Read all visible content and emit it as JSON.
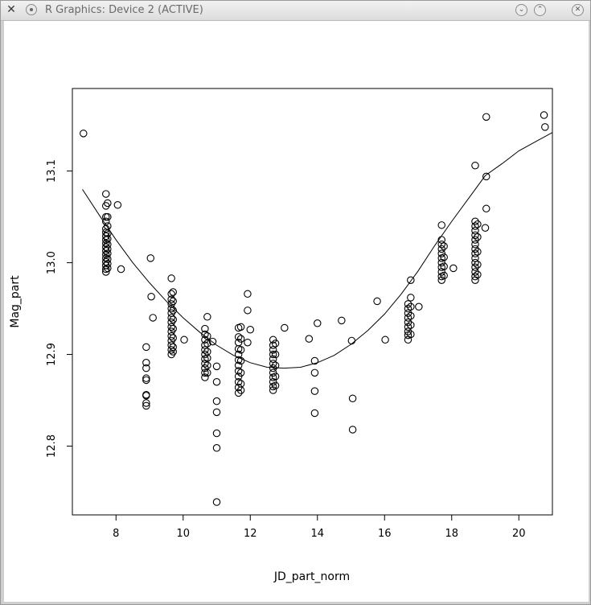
{
  "window": {
    "title": "R Graphics: Device 2 (ACTIVE)"
  },
  "chart_data": {
    "type": "scatter",
    "title": "",
    "xlabel": "JD_part_norm",
    "ylabel": "Mag_part",
    "xlim": [
      6.7,
      21.0
    ],
    "ylim": [
      12.725,
      13.19
    ],
    "xticks": [
      8,
      10,
      12,
      14,
      16,
      18,
      20
    ],
    "yticks": [
      12.8,
      12.9,
      13.0,
      13.1
    ],
    "xtick_labels": [
      "8",
      "10",
      "12",
      "14",
      "16",
      "18",
      "20"
    ],
    "ytick_labels": [
      "12.8",
      "12.9",
      "13.0",
      "13.1"
    ],
    "grid": false,
    "legend": "none",
    "point_color": "#000000",
    "points": [
      [
        7.03,
        13.141
      ],
      [
        7.7,
        13.075
      ],
      [
        7.7,
        13.062
      ],
      [
        7.7,
        13.05
      ],
      [
        7.7,
        13.045
      ],
      [
        7.7,
        13.037
      ],
      [
        7.7,
        13.033
      ],
      [
        7.7,
        13.029
      ],
      [
        7.7,
        13.025
      ],
      [
        7.7,
        13.021
      ],
      [
        7.7,
        13.017
      ],
      [
        7.7,
        13.013
      ],
      [
        7.7,
        13.009
      ],
      [
        7.7,
        13.005
      ],
      [
        7.7,
        13.001
      ],
      [
        7.7,
        12.997
      ],
      [
        7.7,
        12.993
      ],
      [
        7.7,
        12.99
      ],
      [
        7.75,
        13.065
      ],
      [
        7.75,
        13.05
      ],
      [
        7.75,
        13.04
      ],
      [
        7.75,
        13.032
      ],
      [
        7.75,
        13.026
      ],
      [
        7.75,
        13.02
      ],
      [
        7.75,
        13.015
      ],
      [
        7.75,
        13.01
      ],
      [
        7.75,
        13.004
      ],
      [
        7.75,
        12.999
      ],
      [
        7.75,
        12.994
      ],
      [
        8.05,
        13.063
      ],
      [
        8.15,
        12.993
      ],
      [
        8.9,
        12.908
      ],
      [
        8.9,
        12.891
      ],
      [
        8.9,
        12.885
      ],
      [
        8.9,
        12.874
      ],
      [
        8.9,
        12.872
      ],
      [
        8.9,
        12.856
      ],
      [
        8.9,
        12.855
      ],
      [
        8.9,
        12.847
      ],
      [
        8.9,
        12.844
      ],
      [
        9.03,
        13.005
      ],
      [
        9.05,
        12.963
      ],
      [
        9.1,
        12.94
      ],
      [
        9.65,
        12.983
      ],
      [
        9.65,
        12.966
      ],
      [
        9.65,
        12.96
      ],
      [
        9.65,
        12.955
      ],
      [
        9.65,
        12.95
      ],
      [
        9.65,
        12.945
      ],
      [
        9.65,
        12.94
      ],
      [
        9.65,
        12.935
      ],
      [
        9.65,
        12.93
      ],
      [
        9.65,
        12.925
      ],
      [
        9.65,
        12.92
      ],
      [
        9.65,
        12.915
      ],
      [
        9.65,
        12.91
      ],
      [
        9.65,
        12.905
      ],
      [
        9.65,
        12.9
      ],
      [
        9.7,
        12.968
      ],
      [
        9.7,
        12.958
      ],
      [
        9.7,
        12.948
      ],
      [
        9.7,
        12.938
      ],
      [
        9.7,
        12.928
      ],
      [
        9.7,
        12.918
      ],
      [
        9.7,
        12.908
      ],
      [
        9.7,
        12.903
      ],
      [
        10.03,
        12.916
      ],
      [
        10.65,
        12.928
      ],
      [
        10.65,
        12.922
      ],
      [
        10.65,
        12.916
      ],
      [
        10.65,
        12.91
      ],
      [
        10.65,
        12.905
      ],
      [
        10.65,
        12.9
      ],
      [
        10.65,
        12.895
      ],
      [
        10.65,
        12.89
      ],
      [
        10.65,
        12.885
      ],
      [
        10.65,
        12.88
      ],
      [
        10.65,
        12.875
      ],
      [
        10.72,
        12.941
      ],
      [
        10.72,
        12.92
      ],
      [
        10.72,
        12.912
      ],
      [
        10.72,
        12.903
      ],
      [
        10.72,
        12.896
      ],
      [
        10.72,
        12.888
      ],
      [
        10.72,
        12.88
      ],
      [
        10.88,
        12.914
      ],
      [
        11.0,
        12.887
      ],
      [
        11.0,
        12.87
      ],
      [
        11.0,
        12.849
      ],
      [
        11.0,
        12.837
      ],
      [
        11.0,
        12.814
      ],
      [
        11.0,
        12.798
      ],
      [
        11.0,
        12.739
      ],
      [
        11.65,
        12.929
      ],
      [
        11.65,
        12.919
      ],
      [
        11.65,
        12.913
      ],
      [
        11.65,
        12.906
      ],
      [
        11.65,
        12.9
      ],
      [
        11.65,
        12.894
      ],
      [
        11.65,
        12.888
      ],
      [
        11.65,
        12.882
      ],
      [
        11.65,
        12.876
      ],
      [
        11.65,
        12.87
      ],
      [
        11.65,
        12.864
      ],
      [
        11.65,
        12.858
      ],
      [
        11.72,
        12.93
      ],
      [
        11.72,
        12.917
      ],
      [
        11.72,
        12.905
      ],
      [
        11.72,
        12.893
      ],
      [
        11.72,
        12.88
      ],
      [
        11.72,
        12.868
      ],
      [
        11.72,
        12.861
      ],
      [
        11.92,
        12.966
      ],
      [
        11.92,
        12.948
      ],
      [
        11.92,
        12.913
      ],
      [
        12.0,
        12.927
      ],
      [
        12.68,
        12.916
      ],
      [
        12.68,
        12.91
      ],
      [
        12.68,
        12.905
      ],
      [
        12.68,
        12.9
      ],
      [
        12.68,
        12.895
      ],
      [
        12.68,
        12.89
      ],
      [
        12.68,
        12.885
      ],
      [
        12.68,
        12.88
      ],
      [
        12.68,
        12.875
      ],
      [
        12.68,
        12.87
      ],
      [
        12.68,
        12.865
      ],
      [
        12.68,
        12.861
      ],
      [
        12.75,
        12.912
      ],
      [
        12.75,
        12.9
      ],
      [
        12.75,
        12.888
      ],
      [
        12.75,
        12.876
      ],
      [
        12.75,
        12.866
      ],
      [
        13.02,
        12.929
      ],
      [
        13.75,
        12.917
      ],
      [
        13.92,
        12.893
      ],
      [
        13.92,
        12.88
      ],
      [
        13.92,
        12.86
      ],
      [
        13.92,
        12.836
      ],
      [
        14.0,
        12.934
      ],
      [
        14.72,
        12.937
      ],
      [
        15.02,
        12.915
      ],
      [
        15.05,
        12.852
      ],
      [
        15.05,
        12.818
      ],
      [
        15.78,
        12.958
      ],
      [
        16.02,
        12.916
      ],
      [
        16.7,
        12.955
      ],
      [
        16.7,
        12.95
      ],
      [
        16.7,
        12.945
      ],
      [
        16.7,
        12.94
      ],
      [
        16.7,
        12.935
      ],
      [
        16.7,
        12.93
      ],
      [
        16.7,
        12.925
      ],
      [
        16.7,
        12.921
      ],
      [
        16.7,
        12.916
      ],
      [
        16.78,
        12.981
      ],
      [
        16.78,
        12.962
      ],
      [
        16.78,
        12.952
      ],
      [
        16.78,
        12.942
      ],
      [
        16.78,
        12.932
      ],
      [
        16.78,
        12.922
      ],
      [
        17.02,
        12.952
      ],
      [
        17.7,
        13.041
      ],
      [
        17.7,
        13.025
      ],
      [
        17.7,
        13.02
      ],
      [
        17.7,
        13.015
      ],
      [
        17.7,
        13.01
      ],
      [
        17.7,
        13.005
      ],
      [
        17.7,
        13.0
      ],
      [
        17.7,
        12.995
      ],
      [
        17.7,
        12.99
      ],
      [
        17.7,
        12.985
      ],
      [
        17.7,
        12.981
      ],
      [
        17.77,
        13.018
      ],
      [
        17.77,
        13.006
      ],
      [
        17.77,
        12.996
      ],
      [
        17.77,
        12.986
      ],
      [
        18.05,
        12.994
      ],
      [
        18.7,
        13.106
      ],
      [
        18.7,
        13.045
      ],
      [
        18.7,
        13.04
      ],
      [
        18.7,
        13.035
      ],
      [
        18.7,
        13.03
      ],
      [
        18.7,
        13.025
      ],
      [
        18.7,
        13.02
      ],
      [
        18.7,
        13.015
      ],
      [
        18.7,
        13.01
      ],
      [
        18.7,
        13.005
      ],
      [
        18.7,
        13.0
      ],
      [
        18.7,
        12.995
      ],
      [
        18.7,
        12.99
      ],
      [
        18.7,
        12.985
      ],
      [
        18.7,
        12.981
      ],
      [
        18.77,
        13.042
      ],
      [
        18.77,
        13.028
      ],
      [
        18.77,
        13.012
      ],
      [
        18.77,
        12.998
      ],
      [
        18.77,
        12.987
      ],
      [
        19.03,
        13.159
      ],
      [
        19.03,
        13.094
      ],
      [
        19.03,
        13.059
      ],
      [
        19.0,
        13.038
      ],
      [
        20.75,
        13.161
      ],
      [
        20.78,
        13.148
      ]
    ],
    "fit_line": {
      "type": "quadratic",
      "x": [
        7.0,
        7.5,
        8.0,
        8.5,
        9.0,
        9.5,
        10.0,
        10.5,
        11.0,
        11.5,
        12.0,
        12.5,
        13.0,
        13.5,
        14.0,
        14.5,
        15.0,
        15.5,
        16.0,
        16.5,
        17.0,
        17.5,
        18.0,
        18.5,
        19.0,
        19.5,
        20.0,
        20.5,
        21.0
      ],
      "y": [
        13.08,
        13.052,
        13.025,
        13.0,
        12.978,
        12.958,
        12.94,
        12.924,
        12.91,
        12.899,
        12.891,
        12.886,
        12.885,
        12.886,
        12.891,
        12.899,
        12.911,
        12.926,
        12.944,
        12.966,
        12.991,
        13.019,
        13.045,
        13.07,
        13.095,
        13.108,
        13.122,
        13.132,
        13.142
      ]
    }
  }
}
